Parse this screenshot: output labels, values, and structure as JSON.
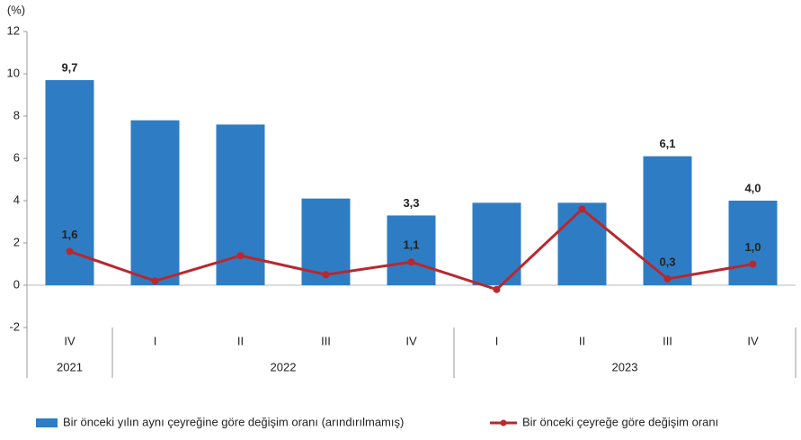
{
  "chart_data": {
    "type": "bar_line",
    "ylabel": "(%)",
    "groups": [
      {
        "name": "2021",
        "categories": [
          "IV"
        ]
      },
      {
        "name": "2022",
        "categories": [
          "I",
          "II",
          "III",
          "IV"
        ]
      },
      {
        "name": "2023",
        "categories": [
          "I",
          "II",
          "III",
          "IV"
        ]
      }
    ],
    "series": [
      {
        "name": "Bir önceki yılın aynı çeyreğine göre değişim oranı (arındırılmamış)",
        "type": "bar",
        "color": "#2e7dc4",
        "values": [
          9.7,
          7.8,
          7.6,
          4.1,
          3.3,
          3.9,
          3.9,
          6.1,
          4.0
        ],
        "value_labels": [
          "9,7",
          null,
          null,
          null,
          "3,3",
          null,
          null,
          "6,1",
          "4,0"
        ]
      },
      {
        "name": "Bir önceki çeyreğe göre değişim oranı",
        "type": "line",
        "color": "#b8282e",
        "values": [
          1.6,
          0.2,
          1.4,
          0.5,
          1.1,
          -0.2,
          3.6,
          0.3,
          1.0
        ],
        "value_labels": [
          "1,6",
          null,
          null,
          null,
          "1,1",
          null,
          null,
          "0,3",
          "1,0"
        ]
      }
    ],
    "ylim": [
      -2,
      12
    ],
    "yticks": [
      -2,
      0,
      2,
      4,
      6,
      8,
      10,
      12
    ],
    "grid": false,
    "legend": "bottom"
  }
}
